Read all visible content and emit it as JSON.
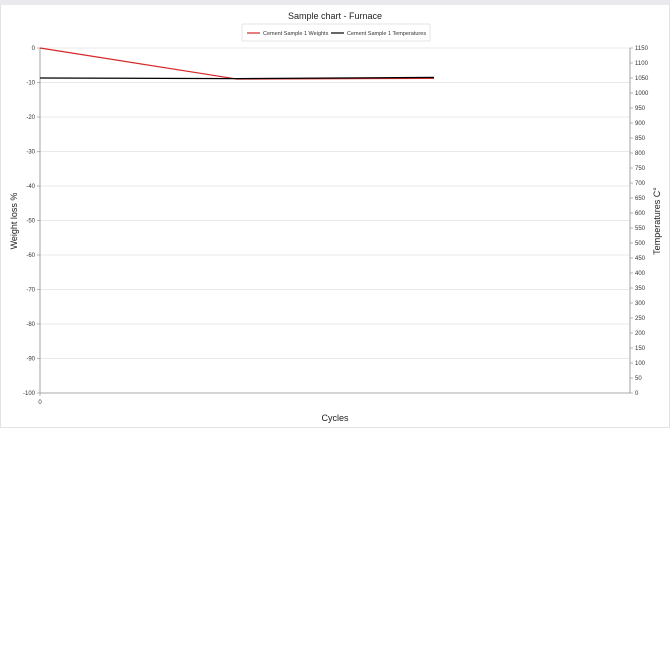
{
  "chart_data": {
    "type": "line",
    "title": "Sample chart - Furnace",
    "xlabel": "Cycles",
    "ylabel": "Weight loss %",
    "y2label": "Temperatures C°",
    "x_ticks": [
      "0"
    ],
    "y_left": {
      "range": [
        -100,
        0
      ],
      "ticks": [
        "0",
        "-10",
        "-20",
        "-30",
        "-40",
        "-50",
        "-60",
        "-70",
        "-80",
        "-90",
        "-100"
      ]
    },
    "y_right": {
      "range": [
        0,
        1150
      ],
      "ticks": [
        "1150",
        "1100",
        "1050",
        "1000",
        "950",
        "900",
        "850",
        "800",
        "750",
        "700",
        "650",
        "600",
        "550",
        "500",
        "450",
        "400",
        "350",
        "300",
        "250",
        "200",
        "150",
        "100",
        "50",
        "0"
      ]
    },
    "grid": "horizontal",
    "legend_position": "top",
    "series": [
      {
        "name": "Cement Sample 1 Weights",
        "axis": "left",
        "color": "#d62728",
        "points": [
          {
            "x": 0,
            "y": 0
          },
          {
            "x": 1,
            "y": -9
          },
          {
            "x": 2,
            "y": -8.8
          }
        ]
      },
      {
        "name": "Cement Sample 1 Temperatures",
        "axis": "right",
        "color": "#000000",
        "points": [
          {
            "x": 0,
            "y": 1050
          },
          {
            "x": 1,
            "y": 1048
          },
          {
            "x": 2,
            "y": 1052
          }
        ]
      }
    ]
  }
}
